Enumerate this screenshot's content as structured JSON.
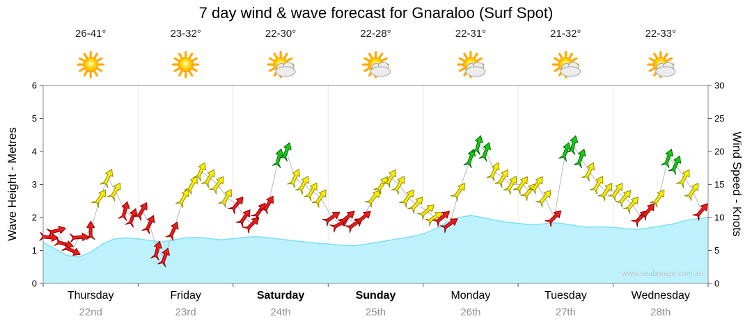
{
  "title": "7 day wind & wave forecast for Gnaraloo (Surf Spot)",
  "watermark": "www.seabreeze.com.au",
  "axes": {
    "left_label": "Wave Height - Metres",
    "right_label": "Wind Speed - Knots",
    "left_ticks": [
      0,
      1,
      2,
      3,
      4,
      5,
      6
    ],
    "right_ticks": [
      0,
      5,
      10,
      15,
      20,
      25,
      30
    ],
    "left_range": [
      0,
      6
    ],
    "right_range": [
      0,
      30
    ]
  },
  "days": [
    {
      "name": "Thursday",
      "date": "22nd",
      "temp": "26-41°",
      "icon": "sunny",
      "bold": false
    },
    {
      "name": "Friday",
      "date": "23rd",
      "temp": "23-32°",
      "icon": "sunny",
      "bold": false
    },
    {
      "name": "Saturday",
      "date": "24th",
      "temp": "22-30°",
      "icon": "partly-cloudy",
      "bold": true
    },
    {
      "name": "Sunday",
      "date": "25th",
      "temp": "22-28°",
      "icon": "partly-cloudy",
      "bold": true
    },
    {
      "name": "Monday",
      "date": "26th",
      "temp": "22-31°",
      "icon": "partly-cloudy",
      "bold": false
    },
    {
      "name": "Tuesday",
      "date": "27th",
      "temp": "21-32°",
      "icon": "partly-cloudy",
      "bold": false
    },
    {
      "name": "Wednesday",
      "date": "28th",
      "temp": "22-33°",
      "icon": "partly-cloudy",
      "bold": false
    }
  ],
  "chart_data": {
    "type": "area",
    "title": "7 day wind & wave forecast for Gnaraloo (Surf Spot)",
    "x_unit": "days; 0 = start of Thursday 22nd, 7 = end of Wednesday 28th",
    "wave_height": {
      "name": "Wave Height - Metres",
      "ylim": [
        0,
        6
      ],
      "color": "#bdf2fd",
      "edge_color": "#7fdff5",
      "x_start": 0,
      "x_step": 0.125,
      "values": [
        1.25,
        1.05,
        0.85,
        0.8,
        0.95,
        1.2,
        1.35,
        1.38,
        1.35,
        1.3,
        1.26,
        1.32,
        1.38,
        1.4,
        1.36,
        1.32,
        1.36,
        1.4,
        1.42,
        1.38,
        1.34,
        1.3,
        1.26,
        1.22,
        1.2,
        1.16,
        1.14,
        1.18,
        1.24,
        1.3,
        1.36,
        1.42,
        1.5,
        1.65,
        1.85,
        2.0,
        2.06,
        2.0,
        1.92,
        1.86,
        1.82,
        1.78,
        1.8,
        1.84,
        1.8,
        1.74,
        1.7,
        1.72,
        1.7,
        1.66,
        1.64,
        1.68,
        1.74,
        1.8,
        1.9,
        1.96,
        2.0
      ]
    },
    "wind": {
      "name": "Wind Speed - Knots",
      "type": "scatter",
      "ylim": [
        0,
        30
      ],
      "line_color": "#b8b8b8",
      "arrow_format": [
        "x_days",
        "speed_knots",
        "direction_deg_0_is_up",
        "color_key"
      ],
      "colors": {
        "red": {
          "fill": "#ee1c1c",
          "stroke": "#8f0000"
        },
        "yellow": {
          "fill": "#ffec00",
          "stroke": "#8c8c00"
        },
        "green": {
          "fill": "#15cc15",
          "stroke": "#066606"
        }
      },
      "arrows": [
        [
          0.06,
          7,
          95,
          "red"
        ],
        [
          0.14,
          8,
          75,
          "red"
        ],
        [
          0.22,
          6,
          105,
          "red"
        ],
        [
          0.3,
          5,
          115,
          "red"
        ],
        [
          0.38,
          7,
          85,
          "red"
        ],
        [
          0.5,
          8,
          0,
          "red"
        ],
        [
          0.6,
          13,
          35,
          "yellow"
        ],
        [
          0.68,
          16,
          25,
          "yellow"
        ],
        [
          0.76,
          14,
          30,
          "yellow"
        ],
        [
          0.86,
          11,
          15,
          "red"
        ],
        [
          0.94,
          10,
          20,
          "red"
        ],
        [
          1.04,
          11,
          30,
          "red"
        ],
        [
          1.12,
          9,
          25,
          "red"
        ],
        [
          1.2,
          5,
          15,
          "red"
        ],
        [
          1.28,
          4,
          20,
          "red"
        ],
        [
          1.37,
          8,
          25,
          "red"
        ],
        [
          1.48,
          13,
          30,
          "yellow"
        ],
        [
          1.57,
          15,
          30,
          "yellow"
        ],
        [
          1.66,
          17,
          25,
          "yellow"
        ],
        [
          1.75,
          16,
          30,
          "yellow"
        ],
        [
          1.84,
          15,
          35,
          "yellow"
        ],
        [
          1.93,
          13,
          30,
          "yellow"
        ],
        [
          2.04,
          12,
          40,
          "red"
        ],
        [
          2.12,
          10,
          35,
          "red"
        ],
        [
          2.2,
          9,
          45,
          "red"
        ],
        [
          2.28,
          11,
          35,
          "red"
        ],
        [
          2.37,
          12,
          30,
          "red"
        ],
        [
          2.48,
          19,
          15,
          "green"
        ],
        [
          2.56,
          20,
          20,
          "green"
        ],
        [
          2.65,
          16,
          25,
          "yellow"
        ],
        [
          2.74,
          15,
          30,
          "yellow"
        ],
        [
          2.83,
          14,
          30,
          "yellow"
        ],
        [
          2.92,
          13,
          35,
          "yellow"
        ],
        [
          3.04,
          10,
          55,
          "red"
        ],
        [
          3.12,
          9,
          60,
          "red"
        ],
        [
          3.2,
          10,
          50,
          "red"
        ],
        [
          3.28,
          9,
          55,
          "red"
        ],
        [
          3.37,
          10,
          50,
          "red"
        ],
        [
          3.48,
          13,
          40,
          "yellow"
        ],
        [
          3.57,
          15,
          35,
          "yellow"
        ],
        [
          3.66,
          16,
          30,
          "yellow"
        ],
        [
          3.75,
          15,
          30,
          "yellow"
        ],
        [
          3.84,
          13,
          35,
          "yellow"
        ],
        [
          3.93,
          12,
          40,
          "yellow"
        ],
        [
          4.04,
          11,
          50,
          "yellow"
        ],
        [
          4.12,
          10,
          55,
          "yellow"
        ],
        [
          4.2,
          10,
          50,
          "red"
        ],
        [
          4.28,
          9,
          55,
          "red"
        ],
        [
          4.38,
          14,
          35,
          "yellow"
        ],
        [
          4.5,
          19,
          20,
          "green"
        ],
        [
          4.58,
          21,
          15,
          "green"
        ],
        [
          4.66,
          20,
          20,
          "green"
        ],
        [
          4.75,
          17,
          25,
          "yellow"
        ],
        [
          4.84,
          16,
          30,
          "yellow"
        ],
        [
          4.93,
          15,
          30,
          "yellow"
        ],
        [
          5.04,
          15,
          35,
          "yellow"
        ],
        [
          5.12,
          14,
          40,
          "yellow"
        ],
        [
          5.2,
          15,
          35,
          "yellow"
        ],
        [
          5.28,
          13,
          40,
          "yellow"
        ],
        [
          5.38,
          10,
          45,
          "red"
        ],
        [
          5.5,
          20,
          20,
          "green"
        ],
        [
          5.58,
          21,
          15,
          "green"
        ],
        [
          5.66,
          19,
          20,
          "green"
        ],
        [
          5.75,
          17,
          25,
          "yellow"
        ],
        [
          5.84,
          15,
          30,
          "yellow"
        ],
        [
          5.93,
          14,
          35,
          "yellow"
        ],
        [
          6.04,
          14,
          35,
          "yellow"
        ],
        [
          6.12,
          13,
          40,
          "yellow"
        ],
        [
          6.2,
          12,
          40,
          "yellow"
        ],
        [
          6.29,
          10,
          45,
          "red"
        ],
        [
          6.37,
          11,
          40,
          "red"
        ],
        [
          6.48,
          13,
          35,
          "yellow"
        ],
        [
          6.58,
          19,
          20,
          "green"
        ],
        [
          6.66,
          18,
          25,
          "green"
        ],
        [
          6.75,
          16,
          30,
          "yellow"
        ],
        [
          6.84,
          14,
          35,
          "yellow"
        ],
        [
          6.93,
          11,
          40,
          "red"
        ]
      ]
    }
  }
}
